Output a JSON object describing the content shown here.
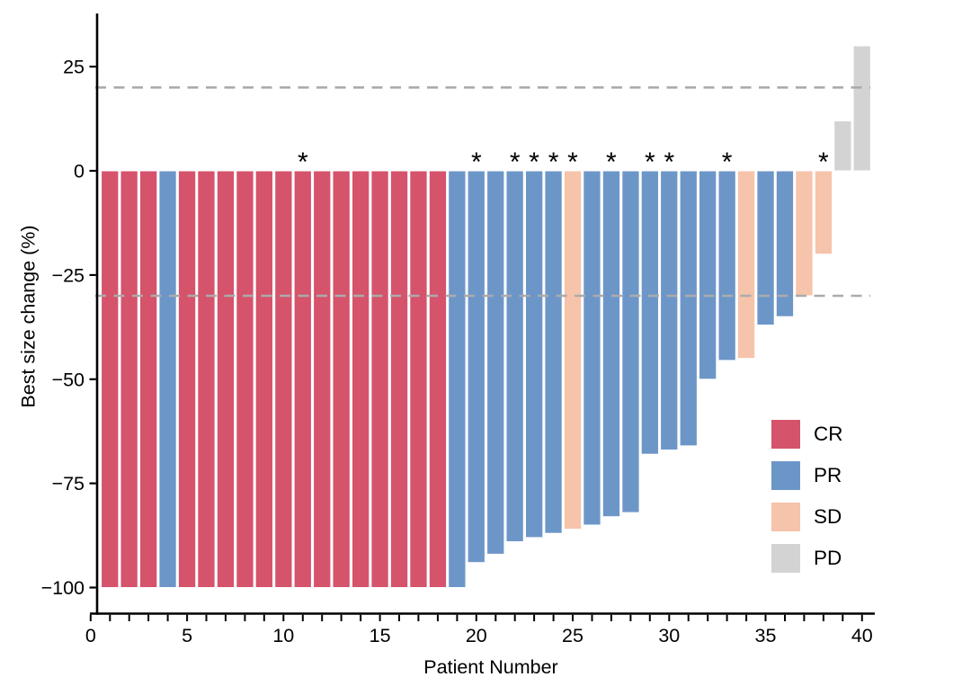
{
  "figure": {
    "y_axis": {
      "label": "Best size change (%)",
      "ticks": [
        25,
        0,
        -25,
        -50,
        -75,
        -100
      ],
      "tick_labels": [
        "25",
        "0",
        "−25",
        "−50",
        "−75",
        "−100"
      ]
    },
    "x_axis": {
      "label": "Patient Number",
      "tick_min": 0,
      "tick_max": 40,
      "labeled_tick_values": [
        0,
        5,
        10,
        15,
        20,
        25,
        30,
        35,
        40
      ],
      "labeled_ticks": [
        "0",
        "5",
        "10",
        "15",
        "20",
        "25",
        "30",
        "35",
        "40"
      ]
    },
    "legend": {
      "items": [
        {
          "label": "CR",
          "color": "#D5536B"
        },
        {
          "label": "PR",
          "color": "#6D96C8"
        },
        {
          "label": "SD",
          "color": "#F6C3AB"
        },
        {
          "label": "PD",
          "color": "#D3D3D3"
        }
      ]
    },
    "reference_lines": {
      "values": [
        20,
        -30
      ],
      "color": "#ABABAB",
      "style": "dashed"
    },
    "annotation_symbol": "*"
  },
  "chart_data": {
    "type": "bar",
    "title": "",
    "xlabel": "Patient Number",
    "ylabel": "Best size change (%)",
    "x": [
      1,
      2,
      3,
      4,
      5,
      6,
      7,
      8,
      9,
      10,
      11,
      12,
      13,
      14,
      15,
      16,
      17,
      18,
      19,
      20,
      21,
      22,
      23,
      24,
      25,
      26,
      27,
      28,
      29,
      30,
      31,
      32,
      33,
      34,
      35,
      36,
      37,
      38,
      39,
      40
    ],
    "values": [
      -100,
      -100,
      -100,
      -100,
      -100,
      -100,
      -100,
      -100,
      -100,
      -100,
      -100,
      -100,
      -100,
      -100,
      -100,
      -100,
      -100,
      -100,
      -100,
      -94,
      -92,
      -89,
      -88,
      -87,
      -86,
      -85,
      -83,
      -82,
      -68,
      -67,
      -66,
      -50,
      -45.5,
      -45,
      -37,
      -35,
      -30,
      -20,
      12,
      30
    ],
    "response": [
      "CR",
      "CR",
      "CR",
      "PR",
      "CR",
      "CR",
      "CR",
      "CR",
      "CR",
      "CR",
      "CR",
      "CR",
      "CR",
      "CR",
      "CR",
      "CR",
      "CR",
      "CR",
      "PR",
      "PR",
      "PR",
      "PR",
      "PR",
      "PR",
      "SD",
      "PR",
      "PR",
      "PR",
      "PR",
      "PR",
      "PR",
      "PR",
      "PR",
      "SD",
      "PR",
      "PR",
      "SD",
      "SD",
      "PD",
      "PD"
    ],
    "palette": {
      "CR": "#D5536B",
      "PR": "#6D96C8",
      "SD": "#F6C3AB",
      "PD": "#D3D3D3"
    },
    "asterisk_patients": [
      11,
      20,
      22,
      23,
      24,
      25,
      27,
      29,
      30,
      33,
      38
    ],
    "reference_lines": [
      20,
      -30
    ],
    "ylim": [
      -106,
      36
    ],
    "xlim": [
      0,
      40.6
    ],
    "grid": false,
    "legend_position": "inside-bottom-right"
  }
}
